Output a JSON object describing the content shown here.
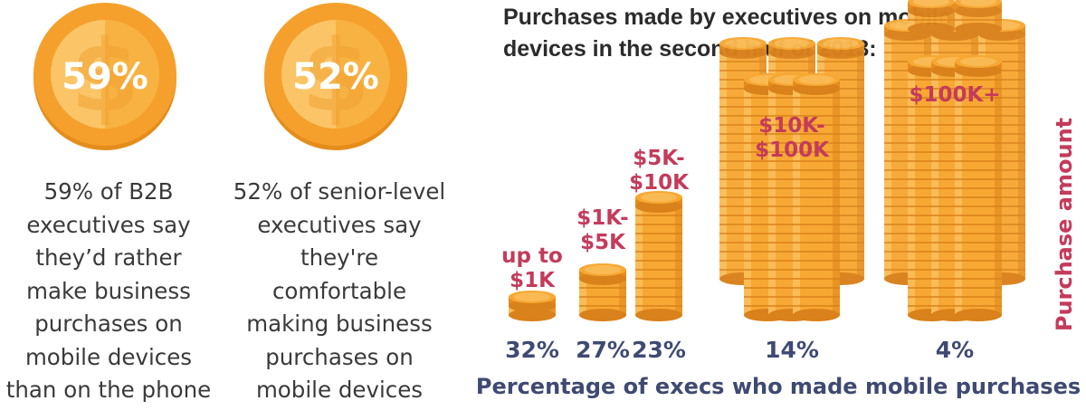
{
  "stats": [
    {
      "value": "59%",
      "text": "59% of B2B\nexecutives say\nthey’d rather\nmake business\npurchases on\nmobile devices\nthan on the phone"
    },
    {
      "value": "52%",
      "text": "52% of senior-level\nexecutives say\nthey're\ncomfortable\nmaking business\npurchases on\nmobile devices"
    }
  ],
  "colors": {
    "coin_face": "#f7a833",
    "coin_edge": "#e58d1c",
    "coin_light": "#fbc970",
    "coin_dark": "#d9811a",
    "percent_text": "#3f4a73",
    "amount_text": "#c43b5b",
    "stat_text": "#3a3a3a",
    "title_text": "#2b2b2b"
  },
  "icons": {
    "medal": "dollar-coin-icon",
    "bars": "coin-stack-icon"
  },
  "chart_data": {
    "type": "bar",
    "title": "Purchases made by executives on mobile\ndevices in the second half of 2013:",
    "xlabel": "Percentage of execs who made mobile purchases",
    "ylabel": "Purchase amount",
    "categories": [
      "up to\n$1K",
      "$1K-\n$5K",
      "$5K-\n$10K",
      "$10K-\n$100K",
      "$100K+"
    ],
    "tick_labels": [
      "32%",
      "27%",
      "23%",
      "14%",
      "4%"
    ],
    "values": [
      32,
      27,
      23,
      14,
      4
    ],
    "grid": false,
    "legend": "none"
  }
}
